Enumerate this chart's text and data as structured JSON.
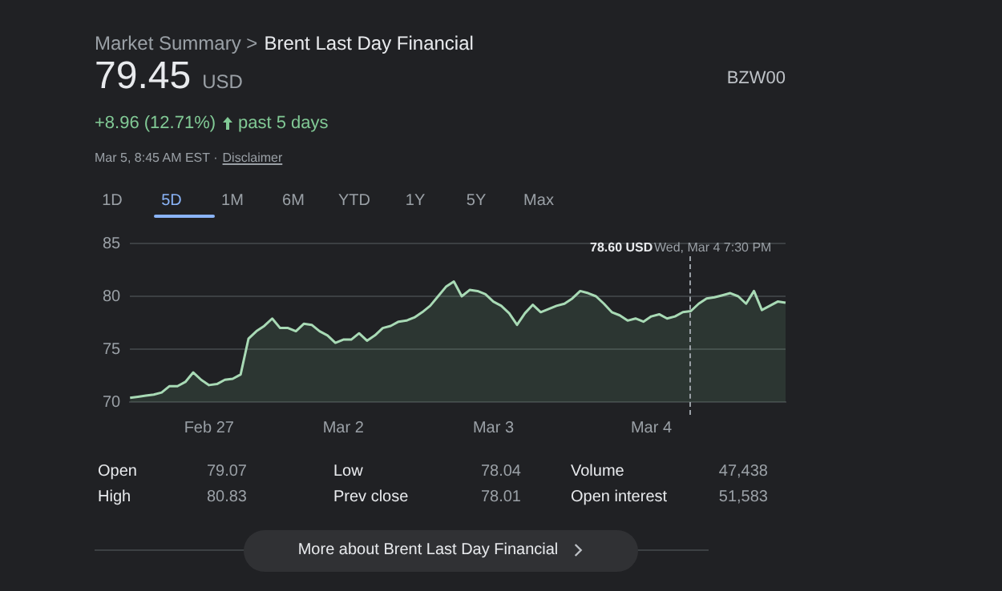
{
  "chart_data": {
    "type": "area",
    "title": "Brent Last Day Financial",
    "categories": [
      null,
      null,
      null,
      null,
      null,
      null,
      null,
      null,
      null,
      null,
      "Feb 27",
      null,
      null,
      null,
      null,
      null,
      null,
      null,
      null,
      null,
      null,
      null,
      null,
      null,
      null,
      null,
      null,
      "Mar 2",
      null,
      null,
      null,
      null,
      null,
      null,
      null,
      null,
      null,
      null,
      null,
      null,
      null,
      null,
      null,
      null,
      null,
      null,
      "Mar 3",
      null,
      null,
      null,
      null,
      null,
      null,
      null,
      null,
      null,
      null,
      null,
      null,
      null,
      null,
      null,
      null,
      null,
      null,
      null,
      "Mar 4",
      null,
      null,
      null,
      null,
      null,
      null,
      null,
      null,
      null,
      null,
      null,
      null,
      null,
      null,
      null,
      null,
      null
    ],
    "values": [
      70.4,
      70.5,
      70.6,
      70.7,
      70.9,
      71.5,
      71.5,
      71.9,
      72.8,
      72.1,
      71.6,
      71.7,
      72.1,
      72.2,
      72.6,
      76.0,
      76.7,
      77.2,
      77.9,
      77.0,
      77.0,
      76.7,
      77.4,
      77.3,
      76.7,
      76.3,
      75.6,
      75.9,
      75.9,
      76.5,
      75.8,
      76.3,
      77.0,
      77.2,
      77.6,
      77.7,
      78.0,
      78.5,
      79.1,
      80.0,
      80.9,
      81.4,
      80.0,
      80.6,
      80.5,
      80.2,
      79.5,
      79.1,
      78.4,
      77.3,
      78.4,
      79.2,
      78.5,
      78.8,
      79.1,
      79.3,
      79.8,
      80.5,
      80.3,
      80.0,
      79.3,
      78.5,
      78.2,
      77.7,
      77.9,
      77.6,
      78.1,
      78.3,
      77.9,
      78.1,
      78.5,
      78.6,
      79.3,
      79.8,
      79.9,
      80.1,
      80.3,
      80.0,
      79.3,
      80.5,
      78.7,
      79.1,
      79.5,
      79.4
    ],
    "color": "#a8dab5",
    "ylim": [
      70,
      85
    ],
    "yticks": [
      70,
      75,
      80,
      85
    ],
    "grid": "y",
    "legend": false,
    "annotations": [
      "Market Summary >",
      "79.45",
      "USD",
      "+8.96 (12.71%)",
      "past 5 days",
      "Mar 5, 8:45 AM EST ·",
      "Disclaimer",
      "BZW00",
      "1D",
      "5D",
      "1M",
      "6M",
      "YTD",
      "1Y",
      "5Y",
      "Max",
      "78.60 USD",
      "Wed, Mar 4 7:30 PM",
      "Open",
      "79.07",
      "High",
      "80.83",
      "Low",
      "78.04",
      "Prev close",
      "78.01",
      "Volume",
      "47,438",
      "Open interest",
      "51,583",
      "More about Brent Last Day Financial"
    ]
  }
}
